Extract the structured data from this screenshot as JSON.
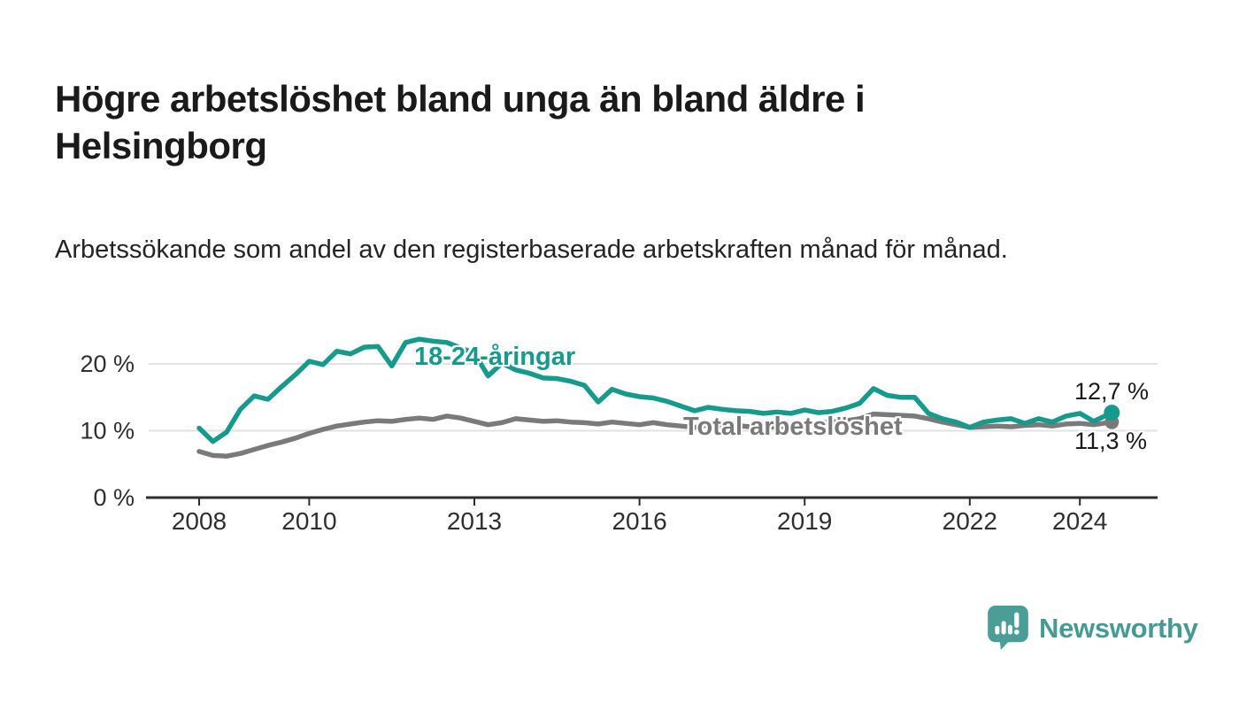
{
  "header": {
    "title": "Högre arbetslöshet bland unga än bland äldre i Helsingborg",
    "subtitle": "Arbetssökande som andel av den registerbaserade arbetskraften månad för månad."
  },
  "chart_data": {
    "type": "line",
    "title": "Högre arbetslöshet bland unga än bland äldre i Helsingborg",
    "xlabel": "",
    "ylabel": "Arbetssökande som andel av den registerbaserade arbetskraften",
    "x_unit": "decimal_year",
    "xlim": [
      2008,
      2025.3
    ],
    "ylim": [
      0,
      25
    ],
    "grid": "horizontal",
    "legend_position": "inline-labels",
    "x_ticks": [
      "2008",
      "2010",
      "2013",
      "2016",
      "2019",
      "2022",
      "2024"
    ],
    "x_tick_years": [
      2008,
      2010,
      2013,
      2016,
      2019,
      2022,
      2024
    ],
    "y_ticks": [
      "0 %",
      "10 %",
      "20 %"
    ],
    "y_tick_values": [
      0,
      10,
      20
    ],
    "x": [
      2008,
      2008.25,
      2008.5,
      2008.75,
      2009,
      2009.25,
      2009.5,
      2009.75,
      2010,
      2010.25,
      2010.5,
      2010.75,
      2011,
      2011.25,
      2011.5,
      2011.75,
      2012,
      2012.25,
      2012.5,
      2012.75,
      2013,
      2013.25,
      2013.5,
      2013.75,
      2014,
      2014.25,
      2014.5,
      2014.75,
      2015,
      2015.25,
      2015.5,
      2015.75,
      2016,
      2016.25,
      2016.5,
      2016.75,
      2017,
      2017.25,
      2017.5,
      2017.75,
      2018,
      2018.25,
      2018.5,
      2018.75,
      2019,
      2019.25,
      2019.5,
      2019.75,
      2020,
      2020.25,
      2020.5,
      2020.75,
      2021,
      2021.25,
      2021.5,
      2021.75,
      2022,
      2022.25,
      2022.5,
      2022.75,
      2023,
      2023.25,
      2023.5,
      2023.75,
      2024,
      2024.25,
      2024.58
    ],
    "series": [
      {
        "name": "18-24-åringar",
        "color": "#169a8c",
        "end_value_label": "12,7 %",
        "values": [
          10.4,
          8.4,
          9.8,
          13.2,
          15.2,
          14.7,
          16.6,
          18.4,
          20.4,
          19.9,
          21.9,
          21.5,
          22.5,
          22.6,
          19.7,
          23.2,
          23.7,
          23.4,
          23.2,
          22.4,
          21.6,
          18.2,
          20.1,
          19.1,
          18.6,
          17.9,
          17.8,
          17.4,
          16.8,
          14.3,
          16.2,
          15.5,
          15.1,
          14.9,
          14.4,
          13.7,
          13.0,
          13.5,
          13.2,
          13.0,
          12.9,
          12.6,
          12.8,
          12.6,
          13.1,
          12.7,
          12.9,
          13.4,
          14.1,
          16.3,
          15.3,
          15.0,
          15.0,
          12.6,
          11.8,
          11.3,
          10.5,
          11.3,
          11.6,
          11.8,
          11.1,
          11.8,
          11.3,
          12.2,
          12.6,
          11.4,
          12.7
        ]
      },
      {
        "name": "Total arbetslöshet",
        "color": "#7a7a7a",
        "end_value_label": "11,3 %",
        "values": [
          6.9,
          6.3,
          6.2,
          6.6,
          7.2,
          7.8,
          8.3,
          8.9,
          9.6,
          10.2,
          10.7,
          11.0,
          11.3,
          11.5,
          11.4,
          11.7,
          11.9,
          11.7,
          12.2,
          11.9,
          11.4,
          10.9,
          11.2,
          11.8,
          11.6,
          11.4,
          11.5,
          11.3,
          11.2,
          11.0,
          11.3,
          11.1,
          10.9,
          11.2,
          10.9,
          10.7,
          10.5,
          10.9,
          10.7,
          10.8,
          10.6,
          10.7,
          10.5,
          10.8,
          11.0,
          11.2,
          11.3,
          11.5,
          11.8,
          12.5,
          12.4,
          12.3,
          12.2,
          11.8,
          11.3,
          10.9,
          10.5,
          10.6,
          10.7,
          10.6,
          10.8,
          10.9,
          10.7,
          11.0,
          11.1,
          10.9,
          11.3
        ]
      }
    ],
    "colors": {
      "grid": "#e2e2e2",
      "axis": "#2e2e2e",
      "young_series": "#169a8c",
      "total_series": "#7a7a7a"
    }
  },
  "footer": {
    "brand": "Newsworthy",
    "brand_color": "#459b93",
    "logo_icon": "newsworthy-speech-bubble-chart-icon"
  }
}
